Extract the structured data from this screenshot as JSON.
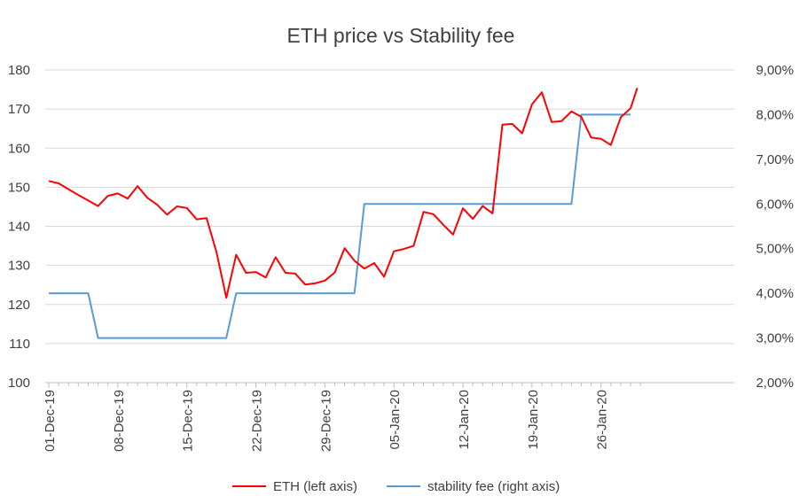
{
  "chart_data": {
    "type": "line",
    "title": "ETH price vs Stability fee",
    "x_ticks": [
      "01-Dec-19",
      "08-Dec-19",
      "15-Dec-19",
      "22-Dec-19",
      "29-Dec-19",
      "05-Jan-20",
      "12-Jan-20",
      "19-Jan-20",
      "26-Jan-20"
    ],
    "x_start": "01-Dec-19",
    "x_range_days": [
      0,
      60
    ],
    "y_left": {
      "min": 100,
      "max": 180,
      "step": 10,
      "labels": [
        "100",
        "110",
        "120",
        "130",
        "140",
        "150",
        "160",
        "170",
        "180"
      ]
    },
    "y_right": {
      "min": 2,
      "max": 9,
      "step": 1,
      "labels": [
        "2,00%",
        "3,00%",
        "4,00%",
        "5,00%",
        "6,00%",
        "7,00%",
        "8,00%",
        "9,00%"
      ]
    },
    "series": [
      {
        "name": "ETH (left axis)",
        "axis": "left",
        "color": "#ff0000",
        "x": [
          0,
          1,
          2,
          3,
          4,
          5,
          6,
          7,
          8,
          9,
          10,
          11,
          12,
          13,
          14,
          15,
          16,
          17,
          18,
          19,
          20,
          21,
          22,
          23,
          24,
          25,
          26,
          27,
          28,
          29,
          30,
          31,
          32,
          33,
          34,
          35,
          36,
          37,
          38,
          39,
          40,
          41,
          42,
          43,
          44,
          45,
          46,
          47,
          48,
          49,
          50,
          51,
          52,
          53,
          54,
          55,
          56,
          57,
          58,
          59
        ],
        "values": [
          151.6,
          151.0,
          149.5,
          148.0,
          146.6,
          145.2,
          147.8,
          148.4,
          147.1,
          150.3,
          147.3,
          145.5,
          143.0,
          145.1,
          144.7,
          141.8,
          142.1,
          133.5,
          121.7,
          132.7,
          128.1,
          128.3,
          126.9,
          132.1,
          128.1,
          127.9,
          125.1,
          125.4,
          126.1,
          128.2,
          134.4,
          131.2,
          129.2,
          130.6,
          127.1,
          133.6,
          134.2,
          135.0,
          143.7,
          143.1,
          140.4,
          137.9,
          144.6,
          141.9,
          145.2,
          143.3,
          166.0,
          166.2,
          163.8,
          171.2,
          174.3,
          166.7,
          166.9,
          169.4,
          168.0,
          162.7,
          162.4,
          160.8,
          167.9,
          170.2
        ]
      },
      {
        "name": "stability fee (right axis)",
        "axis": "right",
        "color": "#5b9bd5",
        "steps": [
          [
            0,
            4
          ],
          [
            4,
            4
          ],
          [
            5,
            3
          ],
          [
            18,
            3
          ],
          [
            19,
            4
          ],
          [
            31,
            4
          ],
          [
            32,
            6
          ],
          [
            53,
            6
          ],
          [
            54,
            8
          ],
          [
            59,
            8
          ]
        ]
      }
    ],
    "eth_last": 175.4,
    "legend": [
      "ETH (left axis)",
      "stability fee (right axis)"
    ],
    "legend_position": "bottom"
  }
}
